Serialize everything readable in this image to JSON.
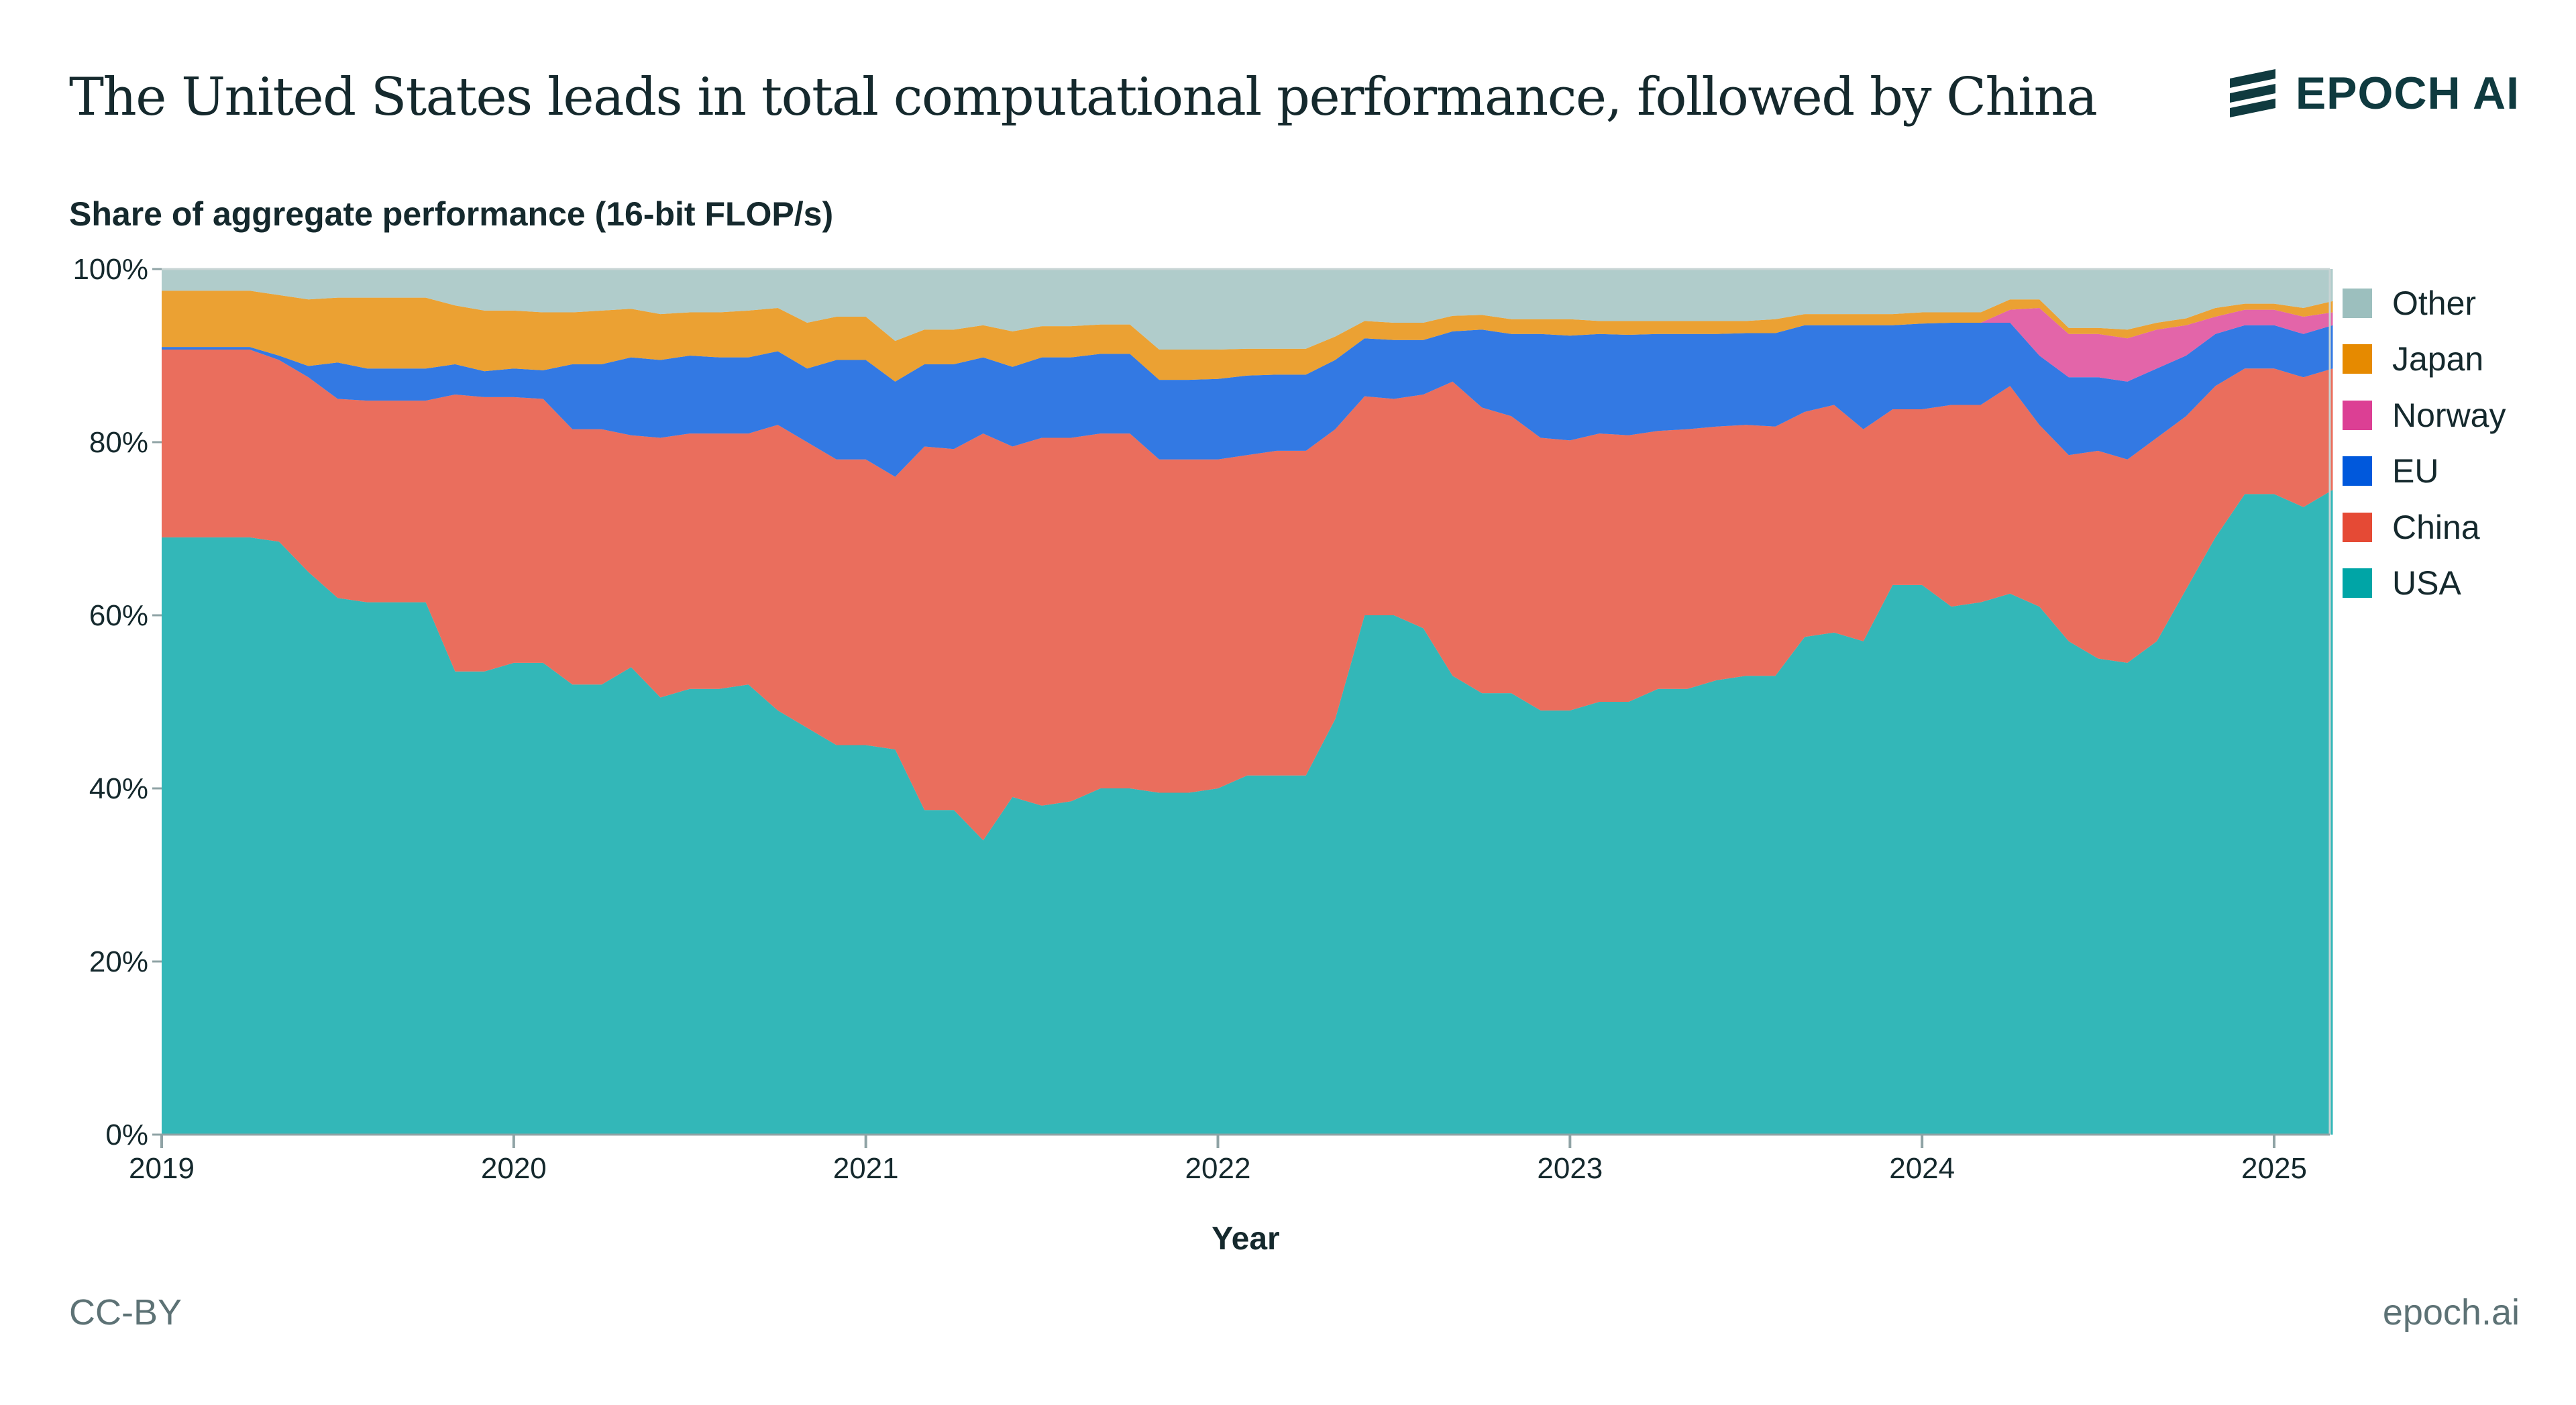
{
  "header": {
    "title": "The United States leads in total computational performance, followed by China",
    "logo_text": "EPOCH AI"
  },
  "footer": {
    "license": "CC-BY",
    "site": "epoch.ai"
  },
  "chart_data": {
    "type": "area",
    "stacked": "percent",
    "title": "The United States leads in total computational performance, followed by China",
    "ylabel": "Share of aggregate performance (16-bit FLOP/s)",
    "xlabel": "Year",
    "ylim": [
      0,
      100
    ],
    "yticks": [
      "0%",
      "20%",
      "40%",
      "60%",
      "80%",
      "100%"
    ],
    "xticks": [
      "2019",
      "2020",
      "2021",
      "2022",
      "2023",
      "2024",
      "2025"
    ],
    "grid": false,
    "legend_placement": "right",
    "x": [
      "2019-01",
      "2019-02",
      "2019-03",
      "2019-04",
      "2019-05",
      "2019-06",
      "2019-07",
      "2019-08",
      "2019-09",
      "2019-10",
      "2019-11",
      "2019-12",
      "2020-01",
      "2020-02",
      "2020-03",
      "2020-04",
      "2020-05",
      "2020-06",
      "2020-07",
      "2020-08",
      "2020-09",
      "2020-10",
      "2020-11",
      "2020-12",
      "2021-01",
      "2021-02",
      "2021-03",
      "2021-04",
      "2021-05",
      "2021-06",
      "2021-07",
      "2021-08",
      "2021-09",
      "2021-10",
      "2021-11",
      "2021-12",
      "2022-01",
      "2022-02",
      "2022-03",
      "2022-04",
      "2022-05",
      "2022-06",
      "2022-07",
      "2022-08",
      "2022-09",
      "2022-10",
      "2022-11",
      "2022-12",
      "2023-01",
      "2023-02",
      "2023-03",
      "2023-04",
      "2023-05",
      "2023-06",
      "2023-07",
      "2023-08",
      "2023-09",
      "2023-10",
      "2023-11",
      "2023-12",
      "2024-01",
      "2024-02",
      "2024-03",
      "2024-04",
      "2024-05",
      "2024-06",
      "2024-07",
      "2024-08",
      "2024-09",
      "2024-10",
      "2024-11",
      "2024-12",
      "2025-01",
      "2025-02",
      "2025-03"
    ],
    "series": [
      {
        "name": "USA",
        "color": "#00a5a6",
        "values": [
          69,
          69,
          69,
          69,
          68.5,
          65,
          62,
          61.5,
          61.5,
          61.5,
          53.5,
          53.5,
          54.5,
          54.5,
          52,
          52,
          54,
          50.5,
          51.5,
          51.5,
          52,
          49,
          47,
          45,
          45,
          44.5,
          37.5,
          37.5,
          34,
          39,
          38,
          38.5,
          40,
          40,
          39.5,
          39.5,
          40,
          41.5,
          41.5,
          41.5,
          48,
          60,
          60,
          58.5,
          53,
          51,
          51,
          49,
          49,
          50,
          50,
          51.5,
          51.5,
          52.5,
          53,
          53,
          57.5,
          58,
          57,
          63.5,
          63.5,
          61,
          61.5,
          62.5,
          61,
          57,
          55,
          54.5,
          57,
          63,
          69,
          74,
          74,
          72.5,
          74.5
        ]
      },
      {
        "name": "China",
        "color": "#e54a35",
        "values": [
          21.7,
          21.7,
          21.7,
          21.7,
          21,
          22.5,
          23,
          23.3,
          23.3,
          23.3,
          32,
          31.7,
          30.7,
          30.5,
          29.5,
          29.5,
          26.8,
          30,
          29.5,
          29.5,
          29,
          33,
          33,
          33,
          33,
          31.5,
          42,
          41.7,
          47,
          40.5,
          42.5,
          42,
          41,
          41,
          38.5,
          38.5,
          38,
          37,
          37.5,
          37.5,
          33.5,
          25.3,
          25,
          27,
          34,
          33,
          32,
          31.5,
          31.2,
          31,
          30.8,
          29.8,
          30,
          29.3,
          29,
          28.8,
          26,
          26.3,
          24.5,
          20.3,
          20.3,
          23.3,
          22.8,
          24,
          21,
          21.5,
          24,
          23.5,
          23.5,
          20,
          17.5,
          14.5,
          14.5,
          15,
          14
        ]
      },
      {
        "name": "EU",
        "color": "#0058dc",
        "values": [
          0.3,
          0.3,
          0.3,
          0.3,
          0.5,
          1.3,
          4.2,
          3.7,
          3.7,
          3.7,
          3.5,
          3,
          3.3,
          3.3,
          7.5,
          7.5,
          9,
          9,
          9,
          8.8,
          8.8,
          8.5,
          8.5,
          11.5,
          11.5,
          11,
          9.5,
          9.8,
          8.8,
          9.2,
          9.3,
          9.3,
          9.2,
          9.2,
          9.2,
          9.2,
          9.3,
          9.2,
          8.8,
          8.8,
          8,
          6.7,
          6.8,
          6.3,
          5.8,
          9,
          9.5,
          12,
          12.1,
          11.5,
          11.6,
          11.2,
          11,
          10.7,
          10.6,
          10.8,
          10,
          9.2,
          12,
          9.7,
          9.9,
          9.5,
          9.5,
          7.3,
          8,
          9,
          8.5,
          9,
          8,
          7,
          6,
          5,
          5,
          5,
          5
        ]
      },
      {
        "name": "Norway",
        "color": "#dc3f94",
        "values": [
          0,
          0,
          0,
          0,
          0,
          0,
          0,
          0,
          0,
          0,
          0,
          0,
          0,
          0,
          0,
          0,
          0,
          0,
          0,
          0,
          0,
          0,
          0,
          0,
          0,
          0,
          0,
          0,
          0,
          0,
          0,
          0,
          0,
          0,
          0,
          0,
          0,
          0,
          0,
          0,
          0,
          0,
          0,
          0,
          0,
          0,
          0,
          0,
          0,
          0,
          0,
          0,
          0,
          0,
          0,
          0,
          0,
          0,
          0,
          0,
          0,
          0,
          0,
          1.5,
          5.5,
          5,
          5,
          5,
          4.5,
          3.5,
          2,
          1.8,
          1.8,
          2,
          1.5
        ]
      },
      {
        "name": "Japan",
        "color": "#e68a00",
        "values": [
          6.5,
          6.5,
          6.5,
          6.5,
          7,
          7.7,
          7.5,
          8.2,
          8.2,
          8.2,
          6.8,
          7,
          6.7,
          6.7,
          6,
          6.2,
          5.6,
          5.3,
          5,
          5.2,
          5.4,
          5,
          5.3,
          5,
          5,
          4.7,
          4,
          4,
          3.7,
          4.1,
          3.6,
          3.6,
          3.4,
          3.4,
          3.5,
          3.5,
          3.4,
          3.1,
          3,
          3,
          2.7,
          2,
          2,
          2,
          1.8,
          1.7,
          1.7,
          1.7,
          1.9,
          1.5,
          1.6,
          1.5,
          1.5,
          1.5,
          1.4,
          1.6,
          1.3,
          1.3,
          1.3,
          1.3,
          1.3,
          1.2,
          1.2,
          1.2,
          1,
          0.7,
          0.7,
          1,
          0.8,
          0.8,
          1,
          0.7,
          0.7,
          1,
          1.3
        ]
      },
      {
        "name": "Other",
        "color": "#9cbfbe",
        "values": [
          2.5,
          2.5,
          2.5,
          2.5,
          3,
          3.5,
          3.3,
          3.3,
          3.3,
          3.3,
          4.2,
          4.8,
          4.8,
          5,
          5,
          4.8,
          4.6,
          5.2,
          5,
          5,
          4.8,
          4.5,
          6.2,
          5.5,
          5.5,
          8.3,
          7,
          7,
          6.5,
          7.2,
          6.6,
          6.6,
          6.4,
          6.4,
          9.3,
          9.3,
          9.3,
          9.2,
          9.2,
          9.2,
          7.8,
          6,
          6.2,
          6.2,
          5.4,
          5.3,
          5.8,
          5.8,
          5.8,
          6,
          6,
          6,
          6,
          6,
          6,
          5.8,
          5.2,
          5.2,
          5.2,
          5.2,
          5,
          5,
          5,
          3.5,
          3.5,
          6.8,
          6.8,
          7,
          6.2,
          5.7,
          4.5,
          4,
          4,
          4.5,
          3.7
        ]
      }
    ],
    "legend_order": [
      "Other",
      "Japan",
      "Norway",
      "EU",
      "China",
      "USA"
    ]
  }
}
